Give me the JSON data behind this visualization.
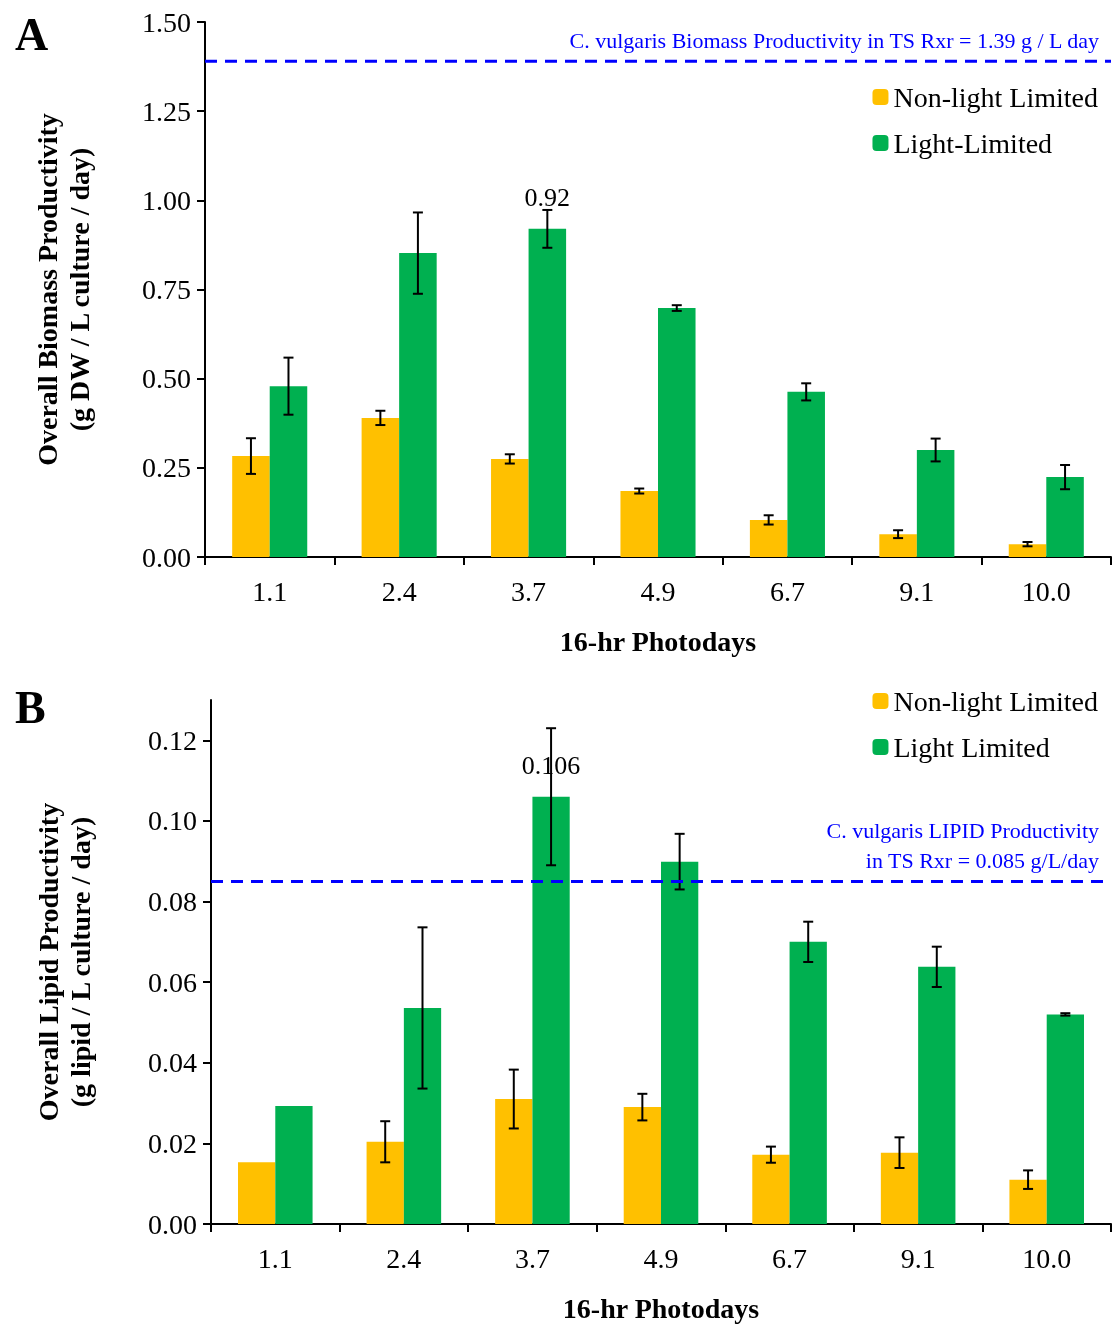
{
  "chart_data": [
    {
      "type": "bar",
      "title": "A",
      "xlabel": "16-hr Photodays",
      "ylabel": "Overall Biomass Productivity\n(g DW / L culture / day)",
      "categories": [
        "1.1",
        "2.4",
        "3.7",
        "4.9",
        "6.7",
        "9.1",
        "10.0"
      ],
      "series": [
        {
          "name": "Non-light Limited",
          "color": "#ffc000",
          "values": [
            0.283,
            0.39,
            0.275,
            0.185,
            0.104,
            0.064,
            0.036
          ],
          "errors": [
            0.05,
            0.02,
            0.013,
            0.007,
            0.013,
            0.011,
            0.006
          ]
        },
        {
          "name": "Light-Limited",
          "color": "#00b050",
          "values": [
            0.479,
            0.852,
            0.92,
            0.698,
            0.463,
            0.3,
            0.224
          ],
          "errors": [
            0.08,
            0.114,
            0.053,
            0.008,
            0.024,
            0.032,
            0.034
          ],
          "value_labels": [
            null,
            null,
            "0.92",
            null,
            null,
            null,
            null
          ]
        }
      ],
      "ylim": [
        0,
        1.5
      ],
      "yticks": [
        {
          "value": 0,
          "label": "0.00"
        },
        {
          "value": 0.25,
          "label": "0.25"
        },
        {
          "value": 0.5,
          "label": "0.50"
        },
        {
          "value": 0.75,
          "label": "0.75"
        },
        {
          "value": 1,
          "label": "1.00"
        },
        {
          "value": 1.25,
          "label": "1.25"
        },
        {
          "value": 1.5,
          "label": "1.50"
        }
      ],
      "ref_lines": [
        {
          "axis": "y",
          "value": 1.39,
          "label": "C. vulgaris Biomass Productivity in TS Rxr = 1.39 g / L day",
          "color": "#0000ff",
          "line_style": "dashed"
        }
      ],
      "legend": "top right",
      "grid": false
    },
    {
      "type": "bar",
      "title": "B",
      "xlabel": "16-hr Photodays",
      "ylabel": "Overall Lipid Productivity\n(g lipid / L culture / day)",
      "categories": [
        "1.1",
        "2.4",
        "3.7",
        "4.9",
        "6.7",
        "9.1",
        "10.0"
      ],
      "series": [
        {
          "name": "Non-light Limited",
          "color": "#ffc000",
          "values": [
            0.0153,
            0.0204,
            0.031,
            0.029,
            0.0172,
            0.0177,
            0.011
          ],
          "errors": [
            null,
            0.0051,
            0.0073,
            0.0033,
            0.002,
            0.0038,
            0.0023
          ]
        },
        {
          "name": "Light Limited",
          "color": "#00b050",
          "values": [
            0.0293,
            0.0536,
            0.106,
            0.0899,
            0.07,
            0.0638,
            0.052
          ],
          "errors": [
            null,
            0.02,
            0.017,
            0.0069,
            0.005,
            0.005,
            0.0003
          ],
          "value_labels": [
            null,
            null,
            "0.106",
            null,
            null,
            null,
            null
          ]
        }
      ],
      "ylim": [
        0,
        0.13
      ],
      "yticks": [
        {
          "value": 0,
          "label": "0.00"
        },
        {
          "value": 0.02,
          "label": "0.02"
        },
        {
          "value": 0.04,
          "label": "0.04"
        },
        {
          "value": 0.06,
          "label": "0.06"
        },
        {
          "value": 0.08,
          "label": "0.08"
        },
        {
          "value": 0.1,
          "label": "0.10"
        },
        {
          "value": 0.12,
          "label": "0.12"
        }
      ],
      "ref_lines": [
        {
          "axis": "y",
          "value": 0.085,
          "label": "C. vulgaris LIPID Productivity\nin TS Rxr = 0.085 g/L/day",
          "color": "#0000ff",
          "line_style": "dashed"
        }
      ],
      "legend": "top right",
      "grid": false
    }
  ]
}
